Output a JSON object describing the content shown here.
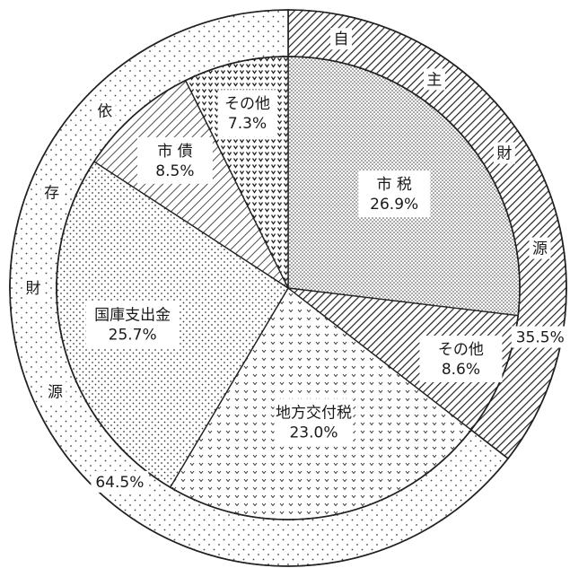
{
  "chart_data": {
    "type": "pie",
    "title": "",
    "outer_ring": [
      {
        "name": "自主財源",
        "value": 35.5,
        "value_label": "35.5%",
        "pattern": "hatch-dense",
        "label_chars": [
          "自",
          "主",
          "財",
          "源"
        ]
      },
      {
        "name": "依存財源",
        "value": 64.5,
        "value_label": "64.5%",
        "pattern": "dots-sparse",
        "label_chars": [
          "依",
          "存",
          "財",
          "源"
        ]
      }
    ],
    "inner_slices": [
      {
        "name": "市 税",
        "value": 26.9,
        "value_label": "26.9%",
        "pattern": "dots-fine"
      },
      {
        "name": "その他",
        "value": 8.6,
        "value_label": "8.6%",
        "pattern": "hatch-dense"
      },
      {
        "name": "地方交付税",
        "value": 23.0,
        "value_label": "23.0%",
        "pattern": "chevrons"
      },
      {
        "name": "国庫支出金",
        "value": 25.7,
        "value_label": "25.7%",
        "pattern": "dots-medium"
      },
      {
        "name": "市 債",
        "value": 8.5,
        "value_label": "8.5%",
        "pattern": "hatch-sparse"
      },
      {
        "name": "その他",
        "value": 7.3,
        "value_label": "7.3%",
        "pattern": "chevrons-vertical"
      }
    ],
    "colors": {
      "stroke": "#222222",
      "background": "#ffffff"
    }
  }
}
